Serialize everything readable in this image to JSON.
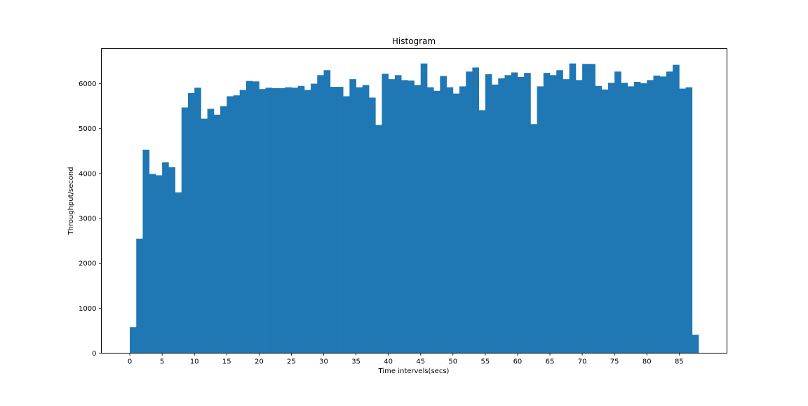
{
  "chart_data": {
    "type": "bar",
    "title": "Histogram",
    "xlabel": "Time intervels(secs)",
    "ylabel": "Throughput/second",
    "xlim": [
      -4.4,
      92.4
    ],
    "ylim": [
      0,
      6780
    ],
    "bin_width": 1,
    "bar_color": "#1f77b4",
    "grid": false,
    "legend": "none",
    "x_ticks": [
      0,
      5,
      10,
      15,
      20,
      25,
      30,
      35,
      40,
      45,
      50,
      55,
      60,
      65,
      70,
      75,
      80,
      85
    ],
    "x_tick_labels": [
      "0",
      "5",
      "10",
      "15",
      "20",
      "25",
      "30",
      "35",
      "40",
      "45",
      "50",
      "55",
      "60",
      "65",
      "70",
      "75",
      "80",
      "85"
    ],
    "y_ticks": [
      0,
      1000,
      2000,
      3000,
      4000,
      5000,
      6000
    ],
    "y_tick_labels": [
      "0",
      "1000",
      "2000",
      "3000",
      "4000",
      "5000",
      "6000"
    ],
    "x": [
      0,
      1,
      2,
      3,
      4,
      5,
      6,
      7,
      8,
      9,
      10,
      11,
      12,
      13,
      14,
      15,
      16,
      17,
      18,
      19,
      20,
      21,
      22,
      23,
      24,
      25,
      26,
      27,
      28,
      29,
      30,
      31,
      32,
      33,
      34,
      35,
      36,
      37,
      38,
      39,
      40,
      41,
      42,
      43,
      44,
      45,
      46,
      47,
      48,
      49,
      50,
      51,
      52,
      53,
      54,
      55,
      56,
      57,
      58,
      59,
      60,
      61,
      62,
      63,
      64,
      65,
      66,
      67,
      68,
      69,
      70,
      71,
      72,
      73,
      74,
      75,
      76,
      77,
      78,
      79,
      80,
      81,
      82,
      83,
      84,
      85,
      86,
      87
    ],
    "values": [
      580,
      2550,
      4530,
      3990,
      3960,
      4250,
      4140,
      3580,
      5470,
      5790,
      5910,
      5220,
      5440,
      5310,
      5500,
      5720,
      5740,
      5860,
      6060,
      6050,
      5880,
      5910,
      5900,
      5900,
      5920,
      5910,
      5950,
      5860,
      6000,
      6190,
      6300,
      5930,
      5930,
      5720,
      6100,
      5920,
      5970,
      5690,
      5080,
      6220,
      6100,
      6190,
      6080,
      6070,
      5970,
      6450,
      5920,
      5840,
      6170,
      5920,
      5780,
      5940,
      6270,
      6360,
      5410,
      6210,
      5980,
      6120,
      6190,
      6250,
      6150,
      6240,
      5100,
      5940,
      6240,
      6190,
      6300,
      6100,
      6450,
      6080,
      6440,
      6440,
      5950,
      5870,
      6020,
      6270,
      6020,
      5940,
      6040,
      6010,
      6080,
      6180,
      6160,
      6270,
      6420,
      5890,
      5920,
      410
    ]
  }
}
